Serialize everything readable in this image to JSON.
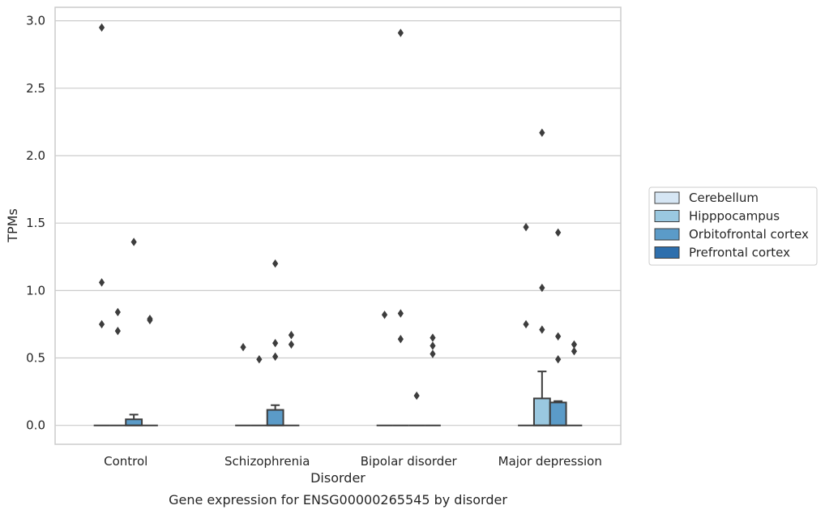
{
  "colors": {
    "cerebellum": "#d6e6f4",
    "hippocampus": "#9ac8e0",
    "orbitofrontal": "#5b9bc8",
    "prefrontal": "#2e6fad",
    "box_edge": "#3d3d3d",
    "grid": "#cccccc",
    "frame": "#cccccc"
  },
  "caption": "Gene expression for ENSG00000265545 by disorder",
  "chart_data": {
    "type": "box",
    "title": "",
    "xlabel": "Disorder",
    "ylabel": "TPMs",
    "ylim": [
      -0.14,
      3.1
    ],
    "yticks": [
      0.0,
      0.5,
      1.0,
      1.5,
      2.0,
      2.5,
      3.0
    ],
    "ytick_labels": [
      "0.0",
      "0.5",
      "1.0",
      "1.5",
      "2.0",
      "2.5",
      "3.0"
    ],
    "grid": "horizontal",
    "legend_position": "right",
    "categories": [
      "Control",
      "Schizophrenia",
      "Bipolar disorder",
      "Major depression"
    ],
    "series": [
      {
        "name": "Cerebellum",
        "color_key": "cerebellum",
        "boxes": [
          {
            "q1": 0,
            "median": 0,
            "q3": 0,
            "whislo": 0,
            "whishi": 0,
            "fliers": [
              2.95,
              1.06,
              0.75
            ]
          },
          {
            "q1": 0,
            "median": 0,
            "q3": 0,
            "whislo": 0,
            "whishi": 0,
            "fliers": [
              0.58
            ]
          },
          {
            "q1": 0,
            "median": 0,
            "q3": 0,
            "whislo": 0,
            "whishi": 0,
            "fliers": [
              0.82
            ]
          },
          {
            "q1": 0,
            "median": 0,
            "q3": 0,
            "whislo": 0,
            "whishi": 0,
            "fliers": [
              1.47,
              0.75
            ]
          }
        ]
      },
      {
        "name": "Hipppocampus",
        "color_key": "hippocampus",
        "boxes": [
          {
            "q1": 0,
            "median": 0,
            "q3": 0,
            "whislo": 0,
            "whishi": 0,
            "fliers": [
              0.84,
              0.7
            ]
          },
          {
            "q1": 0,
            "median": 0,
            "q3": 0,
            "whislo": 0,
            "whishi": 0,
            "fliers": [
              0.49
            ]
          },
          {
            "q1": 0,
            "median": 0,
            "q3": 0,
            "whislo": 0,
            "whishi": 0,
            "fliers": [
              2.91,
              0.83,
              0.64
            ]
          },
          {
            "q1": 0,
            "median": 0,
            "q3": 0.2,
            "whislo": 0,
            "whishi": 0.4,
            "fliers": [
              2.17,
              1.02,
              0.71
            ]
          }
        ]
      },
      {
        "name": "Orbitofrontal cortex",
        "color_key": "orbitofrontal",
        "boxes": [
          {
            "q1": 0,
            "median": 0,
            "q3": 0.045,
            "whislo": 0,
            "whishi": 0.08,
            "fliers": [
              1.36
            ]
          },
          {
            "q1": 0,
            "median": 0,
            "q3": 0.115,
            "whislo": 0,
            "whishi": 0.15,
            "fliers": [
              1.2,
              0.61,
              0.51
            ]
          },
          {
            "q1": 0,
            "median": 0,
            "q3": 0,
            "whislo": 0,
            "whishi": 0,
            "fliers": [
              0.22
            ]
          },
          {
            "q1": 0,
            "median": 0,
            "q3": 0.17,
            "whislo": 0,
            "whishi": 0.18,
            "fliers": [
              1.43,
              0.66,
              0.49
            ]
          }
        ]
      },
      {
        "name": "Prefrontal cortex",
        "color_key": "prefrontal",
        "boxes": [
          {
            "q1": 0,
            "median": 0,
            "q3": 0,
            "whislo": 0,
            "whishi": 0,
            "fliers": [
              0.79,
              0.78
            ]
          },
          {
            "q1": 0,
            "median": 0,
            "q3": 0,
            "whislo": 0,
            "whishi": 0,
            "fliers": [
              0.67,
              0.6
            ]
          },
          {
            "q1": 0,
            "median": 0,
            "q3": 0,
            "whislo": 0,
            "whishi": 0,
            "fliers": [
              0.65,
              0.59,
              0.53
            ]
          },
          {
            "q1": 0,
            "median": 0,
            "q3": 0,
            "whislo": 0,
            "whishi": 0,
            "fliers": [
              0.6,
              0.55
            ]
          }
        ]
      }
    ]
  }
}
